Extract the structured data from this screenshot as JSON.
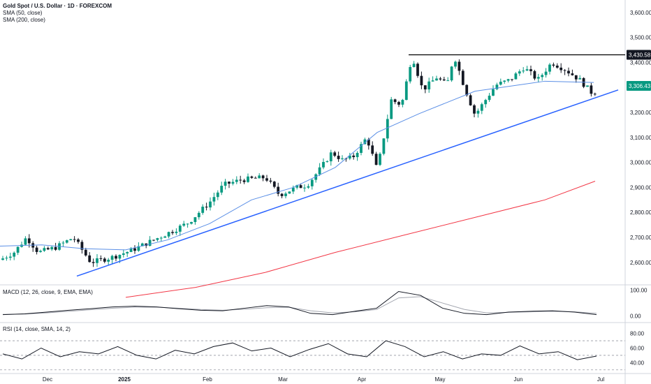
{
  "header": {
    "symbol_line": "Gold Spot / U.S. Dollar · 1D · FOREXCOM",
    "sma50_label": "SMA (50, close)",
    "sma200_label": "SMA (200, close)",
    "macd_label": "MACD (12, 26, close, 9, EMA, EMA)",
    "rsi_label": "RSI (14, close, SMA, 14, 2)"
  },
  "colors": {
    "up": "#089981",
    "down": "#131722",
    "sma50": "#5b8fe6",
    "sma200": "#f23645",
    "trendline": "#2962ff",
    "resistance": "#000000",
    "macd": "#131722",
    "signal": "#a3a6af",
    "rsi": "#131722",
    "price_tag_green": "#089981",
    "price_tag_dark": "#131722"
  },
  "price_tags": {
    "resistance": "3,430.58",
    "last": "3,306.43"
  },
  "chart_data": {
    "type": "candlestick",
    "title": "Gold Spot / U.S. Dollar · 1D · FOREXCOM",
    "price_axis": {
      "ylim": [
        2510,
        3650
      ],
      "ticks": [
        "3,600.00",
        "3,500.00",
        "3,400.00",
        "3,300.00",
        "3,200.00",
        "3,100.00",
        "3,000.00",
        "2,900.00",
        "2,800.00",
        "2,700.00",
        "2,600.00"
      ]
    },
    "x_axis_labels": [
      "Dec",
      "2025",
      "Feb",
      "Mar",
      "Apr",
      "May",
      "Jun",
      "Jul"
    ],
    "series": [
      {
        "name": "SMA (50, close)",
        "anchor_values": [
          2665,
          2670,
          2655,
          2650,
          2690,
          2755,
          2850,
          2900,
          2980,
          3120,
          3195,
          3285,
          3325,
          3320
        ]
      },
      {
        "name": "SMA (200, close)",
        "anchor_values": [
          2460,
          2500,
          2560,
          2640,
          2710,
          2780,
          2850,
          2925
        ]
      }
    ],
    "resistance_level": 3430.58,
    "last_price": 3306.43,
    "trendline": {
      "start": 2545,
      "end": 3290
    },
    "macd": {
      "name": "MACD (12, 26, close, 9, EMA, EMA)",
      "ticks": [
        "100.00",
        "0.00"
      ],
      "ylim": [
        -15,
        110
      ],
      "macd_values": [
        5,
        8,
        15,
        22,
        28,
        35,
        38,
        35,
        28,
        22,
        20,
        30,
        40,
        35,
        10,
        5,
        18,
        30,
        95,
        80,
        30,
        10,
        5,
        15,
        18,
        20,
        15,
        5
      ],
      "signal_values": [
        6,
        7,
        12,
        18,
        24,
        30,
        34,
        34,
        30,
        25,
        22,
        26,
        32,
        34,
        20,
        12,
        16,
        25,
        70,
        75,
        50,
        25,
        12,
        14,
        16,
        18,
        16,
        10
      ]
    },
    "rsi": {
      "name": "RSI (14, close, SMA, 14, 2)",
      "ticks": [
        "80.00",
        "60.00",
        "40.00"
      ],
      "ylim": [
        25,
        95
      ],
      "levels": [
        70,
        50,
        30
      ],
      "values": [
        52,
        45,
        60,
        48,
        55,
        52,
        62,
        50,
        45,
        57,
        52,
        62,
        67,
        56,
        60,
        48,
        58,
        66,
        52,
        48,
        70,
        62,
        48,
        55,
        45,
        52,
        50,
        63,
        52,
        55,
        44,
        49
      ]
    },
    "grid": true,
    "legend": "top-left"
  }
}
